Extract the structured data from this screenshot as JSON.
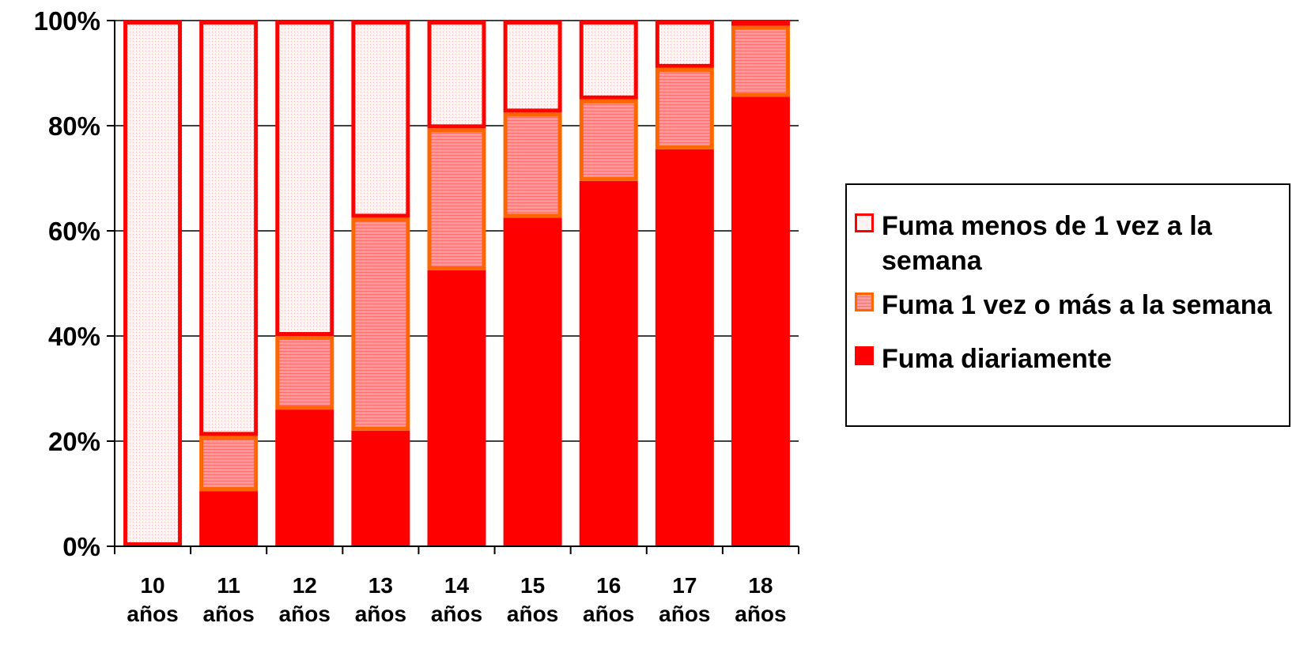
{
  "chart_data": {
    "type": "bar",
    "stacked": "percent",
    "categories": [
      [
        "10",
        "años"
      ],
      [
        "11",
        "años"
      ],
      [
        "12",
        "años"
      ],
      [
        "13",
        "años"
      ],
      [
        "14",
        "años"
      ],
      [
        "15",
        "años"
      ],
      [
        "16",
        "años"
      ],
      [
        "17",
        "años"
      ],
      [
        "18",
        "años"
      ]
    ],
    "series": [
      {
        "name": "Fuma diariamente",
        "values": [
          0,
          10.5,
          26,
          22,
          52.5,
          62.5,
          69.5,
          75.5,
          85.5
        ],
        "fill": "#FF0000",
        "stroke": "#FF0000",
        "pattern": "solid"
      },
      {
        "name": "Fuma 1 vez o más a la semana",
        "values": [
          0,
          10.5,
          14,
          40.5,
          27,
          20,
          15.5,
          15.5,
          13.5
        ],
        "fill": "#FF9999",
        "stroke": "#FF6600",
        "pattern": "dense-dots"
      },
      {
        "name": "Fuma menos de 1 vez a la semana",
        "values": [
          100,
          79,
          60,
          37.5,
          20.5,
          17.5,
          15,
          9,
          1
        ],
        "fill": "#FFF2F2",
        "stroke": "#FF0000",
        "pattern": "sparse-dots"
      }
    ],
    "y_tick_labels": [
      "0%",
      "20%",
      "40%",
      "60%",
      "80%",
      "100%"
    ],
    "ylim": [
      0,
      100
    ],
    "legend_position": "right",
    "grid": true
  },
  "legend": {
    "items": [
      "Fuma menos de 1 vez a la semana",
      "Fuma 1 vez o más a la semana",
      "Fuma diariamente"
    ]
  }
}
